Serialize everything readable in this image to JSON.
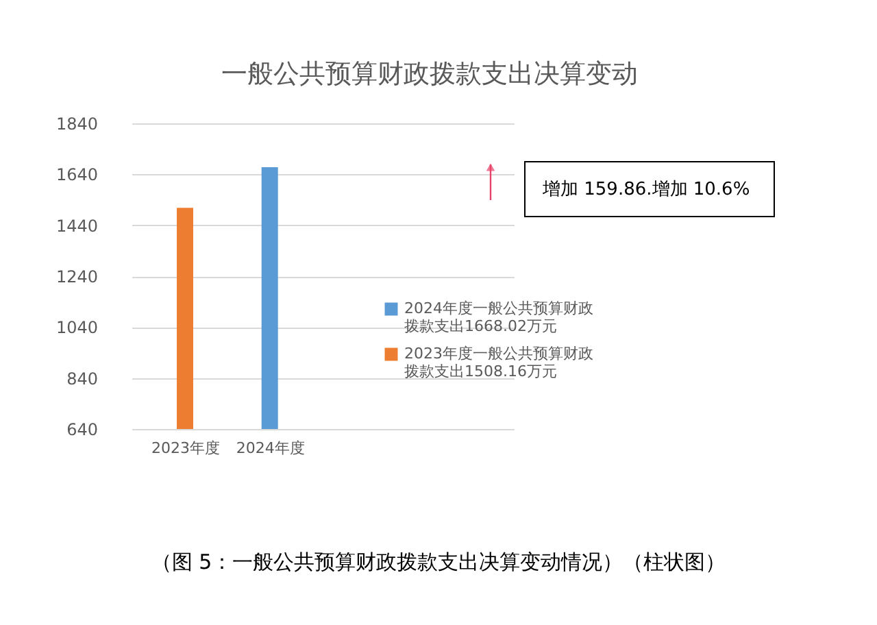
{
  "chart_data": {
    "type": "bar",
    "title": "一般公共预算财政拨款支出决算变动",
    "categories": [
      "2023年度",
      "2024年度"
    ],
    "series": [
      {
        "name": "2024年度一般公共预算财政拨款支出1668.02万元",
        "color": "#5b9bd5",
        "values": [
          null,
          1668.02
        ]
      },
      {
        "name": "2023年度一般公共预算财政拨款支出1508.16万元",
        "color": "#ed7d31",
        "values": [
          1508.16,
          null
        ]
      }
    ],
    "ylim": [
      640,
      1840
    ],
    "yticks": [
      640,
      840,
      1040,
      1240,
      1440,
      1640,
      1840
    ],
    "grid": "y",
    "legend": "right",
    "annotations": [
      "增加 159.86.增加 10.6%",
      "（图 5：一般公共预算财政拨款支出决算变动情况）（柱状图）"
    ]
  }
}
